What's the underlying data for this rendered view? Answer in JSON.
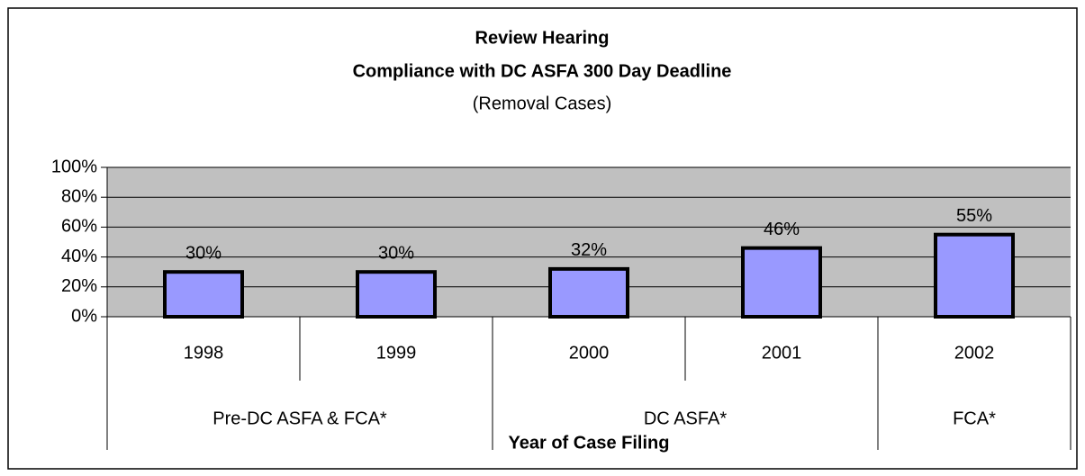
{
  "chart_data": {
    "type": "bar",
    "title": "Review Hearing",
    "subtitle": "Compliance with DC ASFA 300 Day Deadline",
    "note": "(Removal Cases)",
    "x_label": "Year of Case Filing",
    "categories": [
      "1998",
      "1999",
      "2000",
      "2001",
      "2002"
    ],
    "category_groups": [
      "Pre-DC ASFA & FCA*",
      "Pre-DC ASFA & FCA*",
      "DC ASFA*",
      "DC ASFA*",
      "FCA*"
    ],
    "values": [
      30,
      30,
      32,
      46,
      55
    ],
    "value_labels": [
      "30%",
      "30%",
      "32%",
      "46%",
      "55%"
    ],
    "color": "#9999ff",
    "ylim": [
      0,
      100
    ],
    "yticks": [
      {
        "value": 0,
        "label": "0%"
      },
      {
        "value": 20,
        "label": "20%"
      },
      {
        "value": 40,
        "label": "40%"
      },
      {
        "value": 60,
        "label": "60%"
      },
      {
        "value": 80,
        "label": "80%"
      },
      {
        "value": 100,
        "label": "100%"
      }
    ],
    "grid": true
  }
}
